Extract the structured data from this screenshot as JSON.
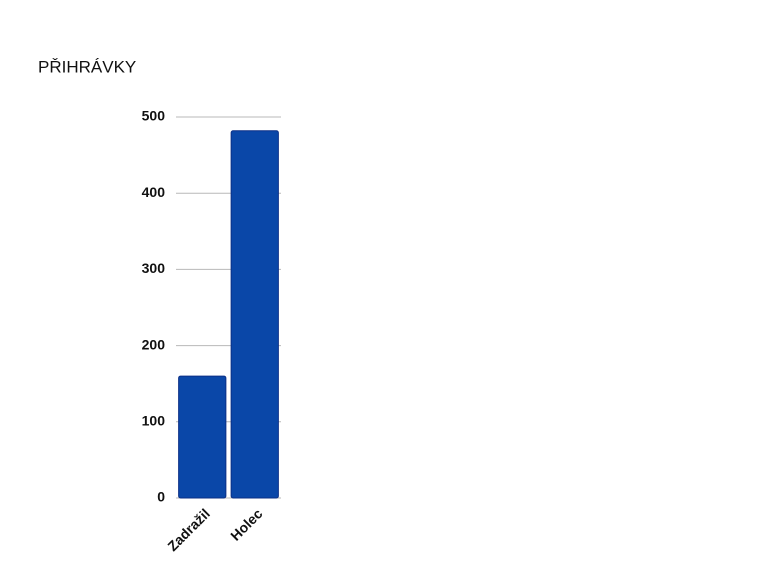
{
  "chart_data": {
    "type": "bar",
    "title": "PŘIHRÁVKY",
    "categories": [
      "Zadražil",
      "Holec"
    ],
    "values": [
      160,
      482
    ],
    "color": "#0a47a8",
    "ylim": [
      0,
      500
    ],
    "yticks": [
      0,
      100,
      200,
      300,
      400,
      500
    ],
    "grid": true
  }
}
